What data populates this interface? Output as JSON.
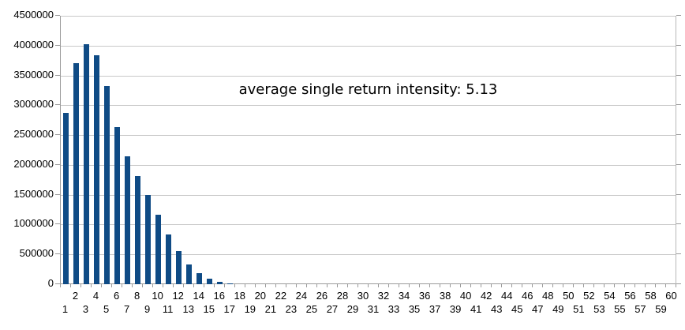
{
  "chart_data": {
    "type": "bar",
    "title": "",
    "annotation": "average single return intensity: 5.13",
    "xlabel": "",
    "ylabel": "",
    "categories": [
      "1",
      "2",
      "3",
      "4",
      "5",
      "6",
      "7",
      "8",
      "9",
      "10",
      "11",
      "12",
      "13",
      "14",
      "15",
      "16",
      "17",
      "18",
      "19",
      "20",
      "21",
      "22",
      "23",
      "24",
      "25",
      "26",
      "27",
      "28",
      "29",
      "30",
      "31",
      "32",
      "33",
      "34",
      "35",
      "36",
      "37",
      "38",
      "39",
      "40",
      "41",
      "42",
      "43",
      "44",
      "45",
      "46",
      "47",
      "48",
      "49",
      "50",
      "51",
      "52",
      "53",
      "54",
      "55",
      "56",
      "57",
      "58",
      "59",
      "60"
    ],
    "values": [
      2870000,
      3700000,
      4030000,
      3840000,
      3320000,
      2630000,
      2150000,
      1810000,
      1500000,
      1160000,
      840000,
      550000,
      330000,
      180000,
      90000,
      45000,
      20000,
      0,
      0,
      0,
      0,
      0,
      0,
      0,
      0,
      0,
      0,
      0,
      0,
      0,
      0,
      0,
      0,
      0,
      0,
      0,
      0,
      0,
      0,
      0,
      0,
      0,
      0,
      0,
      0,
      0,
      0,
      0,
      0,
      0,
      0,
      0,
      0,
      0,
      0,
      0,
      0,
      0,
      0,
      0
    ],
    "ylim": [
      0,
      4500000
    ],
    "ytick_interval": 500000,
    "ytick_labels": [
      "0",
      "500000",
      "1000000",
      "1500000",
      "2000000",
      "2500000",
      "3000000",
      "3500000",
      "4000000",
      "4500000"
    ],
    "grid": true,
    "legend": "none",
    "bar_color": "#0f4b85",
    "grid_color": "#c8c8c8",
    "axis_color": "#9b9b9b",
    "text_color": "#000000"
  }
}
